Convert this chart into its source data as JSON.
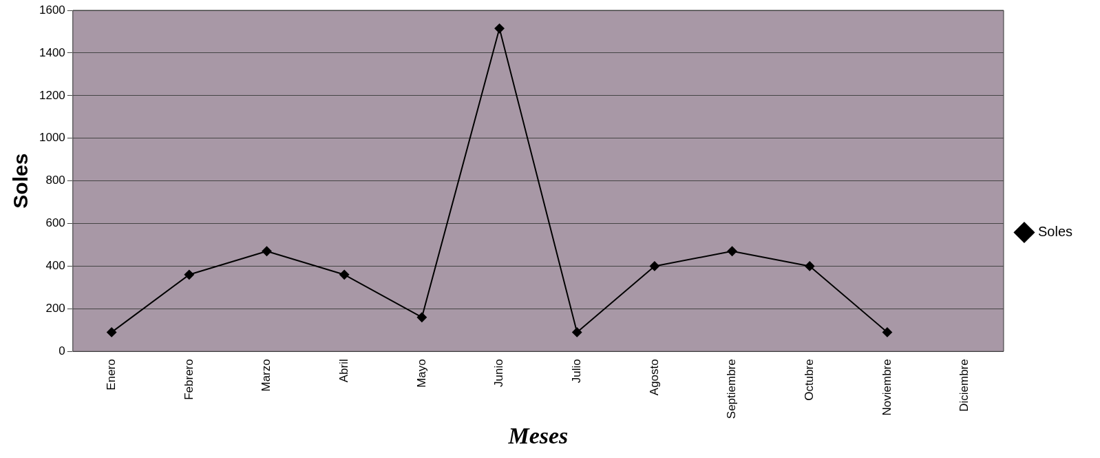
{
  "chart_data": {
    "type": "line",
    "xlabel": "Meses",
    "ylabel": "Soles",
    "categories": [
      "Enero",
      "Febrero",
      "Marzo",
      "Abril",
      "Mayo",
      "Junio",
      "Julio",
      "Agosto",
      "Septiembre",
      "Octubre",
      "Noviembre",
      "Diciembre"
    ],
    "series": [
      {
        "name": "Soles",
        "color": "#000000",
        "values": [
          90,
          360,
          470,
          360,
          160,
          1515,
          90,
          400,
          470,
          400,
          90,
          null
        ]
      }
    ],
    "ylim": [
      0,
      1600
    ],
    "yticks": [
      0,
      200,
      400,
      600,
      800,
      1000,
      1200,
      1400,
      1600
    ],
    "grid": "y",
    "legend": "right",
    "marker": "diamond",
    "line_style": "solid"
  }
}
